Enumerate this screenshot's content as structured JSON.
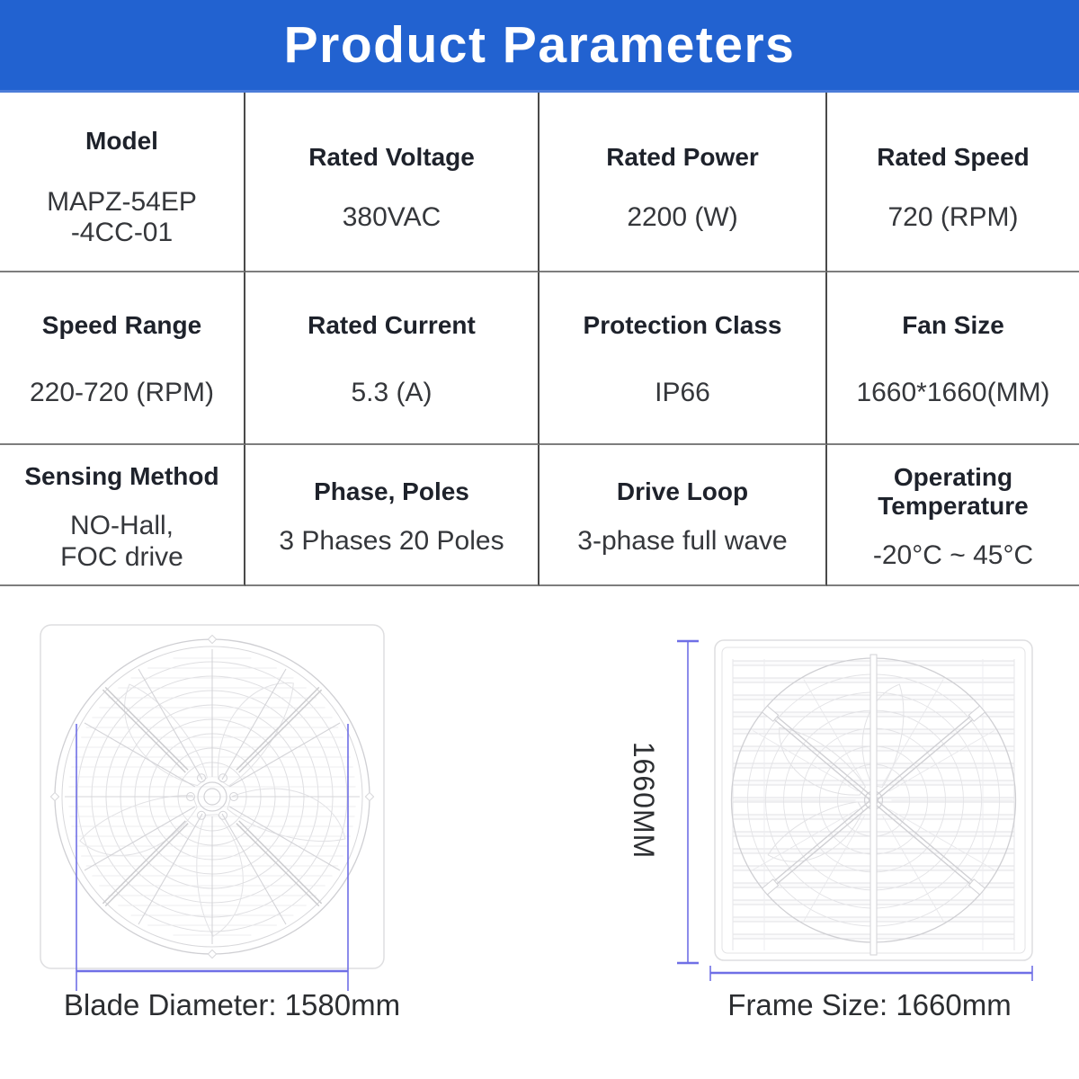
{
  "title": "Product Parameters",
  "colors": {
    "header_bg": "#2262d0",
    "header_text": "#ffffff",
    "dimension_line": "#6f6fe6",
    "table_border_vertical": "#4a4a4a",
    "table_border_horizontal": "#7d7d7d",
    "drawing_line": "#dcdcdf"
  },
  "table": {
    "rows": [
      {
        "cells": [
          {
            "label": "Model",
            "value": "MAPZ-54EP\n-4CC-01"
          },
          {
            "label": "Rated Voltage",
            "value": "380VAC"
          },
          {
            "label": "Rated Power",
            "value": "2200 (W)"
          },
          {
            "label": "Rated Speed",
            "value": "720 (RPM)"
          }
        ]
      },
      {
        "cells": [
          {
            "label": "Speed Range",
            "value": "220-720 (RPM)"
          },
          {
            "label": "Rated Current",
            "value": "5.3 (A)"
          },
          {
            "label": "Protection Class",
            "value": "IP66"
          },
          {
            "label": "Fan Size",
            "value": "1660*1660(MM)"
          }
        ]
      },
      {
        "cells": [
          {
            "label": "Sensing Method",
            "value": "NO-Hall,\nFOC drive"
          },
          {
            "label": "Phase, Poles",
            "value": "3 Phases 20 Poles"
          },
          {
            "label": "Drive Loop",
            "value": "3-phase full wave"
          },
          {
            "label": "Operating\nTemperature",
            "value": "-20°C ~ 45°C"
          }
        ]
      }
    ]
  },
  "diagrams": {
    "front_view": {
      "caption": "Blade Diameter: 1580mm"
    },
    "rear_view": {
      "caption": "Frame Size: 1660mm",
      "height_label": "1660MM"
    }
  }
}
